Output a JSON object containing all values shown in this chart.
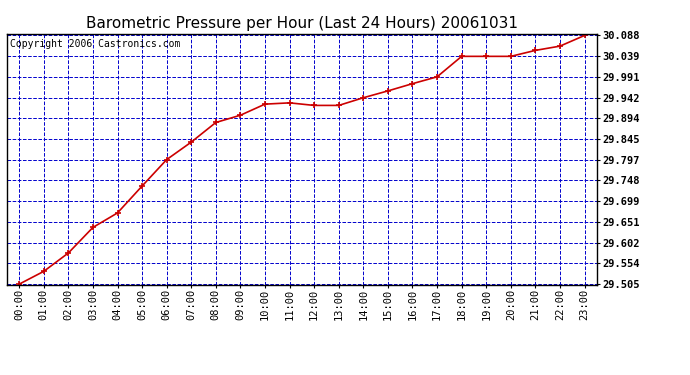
{
  "title": "Barometric Pressure per Hour (Last 24 Hours) 20061031",
  "copyright": "Copyright 2006 Castronics.com",
  "x_labels": [
    "00:00",
    "01:00",
    "02:00",
    "03:00",
    "04:00",
    "05:00",
    "06:00",
    "07:00",
    "08:00",
    "09:00",
    "10:00",
    "11:00",
    "12:00",
    "13:00",
    "14:00",
    "15:00",
    "16:00",
    "17:00",
    "18:00",
    "19:00",
    "20:00",
    "21:00",
    "22:00",
    "23:00"
  ],
  "y_values": [
    29.505,
    29.535,
    29.578,
    29.638,
    29.672,
    29.735,
    29.797,
    29.838,
    29.884,
    29.901,
    29.927,
    29.93,
    29.924,
    29.924,
    29.942,
    29.958,
    29.975,
    29.991,
    30.039,
    30.039,
    30.039,
    30.053,
    30.063,
    30.088
  ],
  "y_min": 29.505,
  "y_max": 30.088,
  "y_ticks": [
    29.505,
    29.554,
    29.602,
    29.651,
    29.699,
    29.748,
    29.797,
    29.845,
    29.894,
    29.942,
    29.991,
    30.039,
    30.088
  ],
  "line_color": "#cc0000",
  "marker_color": "#cc0000",
  "bg_color": "#ffffff",
  "plot_bg_color": "#ffffff",
  "grid_color": "#0000cc",
  "border_color": "#000000",
  "title_color": "#000000",
  "copyright_color": "#000000",
  "title_fontsize": 11,
  "copyright_fontsize": 7,
  "tick_fontsize": 7.5
}
